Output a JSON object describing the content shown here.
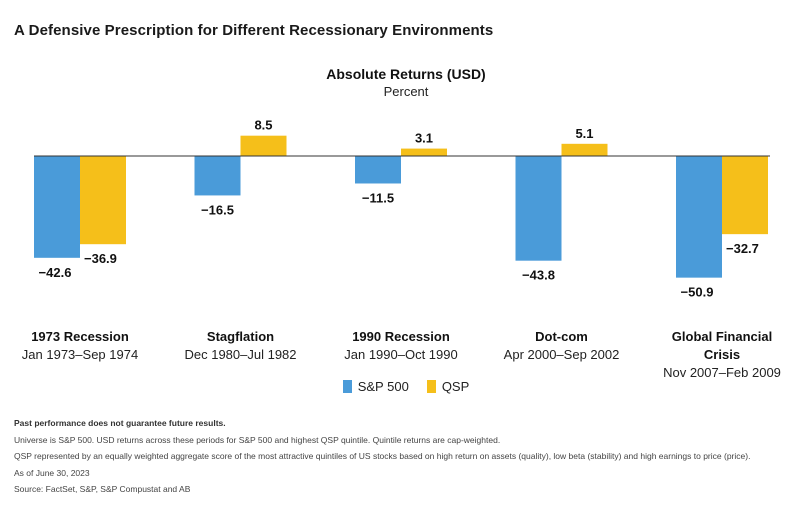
{
  "page_title": "A Defensive Prescription for Different Recessionary Environments",
  "chart_data": {
    "type": "bar",
    "title": "Absolute Returns (USD)",
    "subtitle": "Percent",
    "categories": [
      {
        "name": "1973 Recession",
        "period": "Jan 1973–Sep 1974"
      },
      {
        "name": "Stagflation",
        "period": "Dec 1980–Jul 1982"
      },
      {
        "name": "1990 Recession",
        "period": "Jan 1990–Oct 1990"
      },
      {
        "name": "Dot-com",
        "period": "Apr 2000–Sep 2002"
      },
      {
        "name": "Global Financial Crisis",
        "period": "Nov 2007–Feb 2009"
      }
    ],
    "series": [
      {
        "name": "S&P 500",
        "color": "#4a9bd9",
        "values": [
          -42.6,
          -16.5,
          -11.5,
          -43.8,
          -50.9
        ],
        "labels": [
          "−42.6",
          "−16.5",
          "−11.5",
          "−43.8",
          "−50.9"
        ]
      },
      {
        "name": "QSP",
        "color": "#f5bf1a",
        "values": [
          -36.9,
          8.5,
          3.1,
          5.1,
          -32.7
        ],
        "labels": [
          "−36.9",
          "8.5",
          "3.1",
          "5.1",
          "−32.7"
        ]
      }
    ],
    "legend_position": "bottom-center",
    "grid": false
  },
  "footnotes": [
    {
      "text": "Past performance does not guarantee future results.",
      "bold": true
    },
    {
      "text": "Universe is S&P 500. USD returns across these periods for S&P 500 and highest QSP quintile. Quintile returns are cap-weighted.",
      "bold": false
    },
    {
      "text": "QSP represented by an equally weighted aggregate score of the most attractive quintiles of US stocks based on high return on assets (quality), low beta (stability) and high earnings to price (price).",
      "bold": false
    },
    {
      "text": "As of June 30, 2023",
      "bold": false
    },
    {
      "text": "Source: FactSet, S&P, S&P Compustat and AB",
      "bold": false
    }
  ]
}
